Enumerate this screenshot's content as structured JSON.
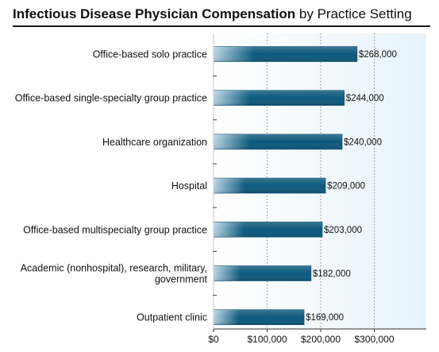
{
  "title": {
    "main": "Infectious Disease Physician Compensation",
    "sub": "by Practice Setting"
  },
  "chart_data": {
    "type": "bar",
    "orientation": "horizontal",
    "title": "Infectious Disease Physician Compensation by Practice Setting",
    "categories": [
      [
        "Office-based solo practice"
      ],
      [
        "Office-based single-specialty group practice"
      ],
      [
        "Healthcare organization"
      ],
      [
        "Hospital"
      ],
      [
        "Office-based multispecialty group practice"
      ],
      [
        "Academic (nonhospital), research, military,",
        "government"
      ],
      [
        "Outpatient clinic"
      ]
    ],
    "values": [
      268000,
      244000,
      240000,
      209000,
      203000,
      182000,
      169000
    ],
    "value_labels": [
      "$268,000",
      "$244,000",
      "$240,000",
      "$209,000",
      "$203,000",
      "$182,000",
      "$169,000"
    ],
    "xlim": [
      0,
      400000
    ],
    "x_ticks": [
      0,
      100000,
      200000,
      300000
    ],
    "x_tick_labels": [
      "$0",
      "$100,000",
      "$200,000",
      "$300,000"
    ],
    "grid": "vertical dotted",
    "colors": {
      "bar_dark": "#0d5a7e",
      "bar_light": "#b7d4e3",
      "plot_bg_left": "#ffffff",
      "plot_bg_right": "#e6f3fb"
    }
  }
}
